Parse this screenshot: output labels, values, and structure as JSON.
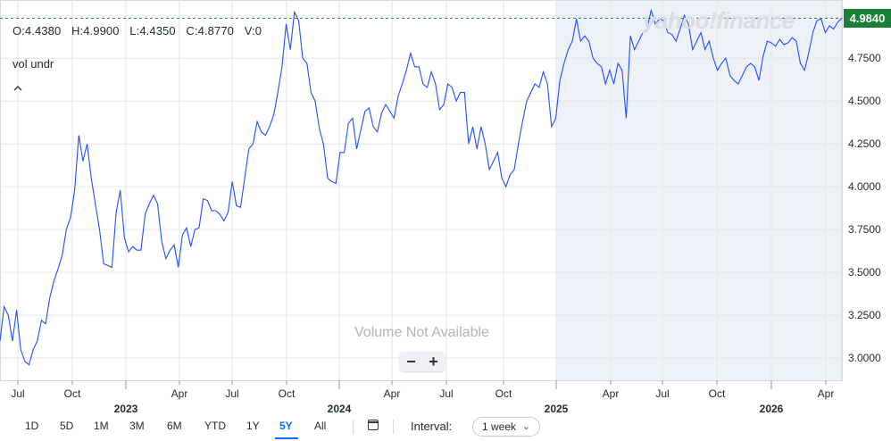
{
  "ohlc": {
    "open": "O:4.4380",
    "high": "H:4.9900",
    "low": "L:4.4350",
    "close": "C:4.8770",
    "volume": "V:0"
  },
  "volume_label": "vol undr",
  "watermark": "yahoo!finance",
  "volume_message": "Volume Not Available",
  "zoom": {
    "minus": "−",
    "plus": "+"
  },
  "current_price": "4.9840",
  "colors": {
    "line": "#1f4fff",
    "price_tag": "#1a7f37",
    "highlight": "#eef1f7",
    "grid": "#e4e6ea"
  },
  "icons": {
    "collapse": "chevron-up-icon",
    "calendar": "calendar-icon",
    "dropdown": "chevron-down-icon"
  },
  "toolbar": {
    "ranges": [
      "1D",
      "5D",
      "1M",
      "3M",
      "6M",
      "YTD",
      "1Y",
      "5Y",
      "All"
    ],
    "active_range": "5Y",
    "interval_label": "Interval:",
    "interval_value": "1 week"
  },
  "chart_data": {
    "type": "line",
    "y_ticks": [
      "5.0000",
      "4.7500",
      "4.5000",
      "4.2500",
      "4.0000",
      "3.7500",
      "3.5000",
      "3.2500",
      "3.0000"
    ],
    "ylim": [
      2.87,
      5.09
    ],
    "x_month_labels": [
      "Jul",
      "Oct",
      "Apr",
      "Jul",
      "Oct",
      "Apr",
      "Jul",
      "Oct",
      "Apr",
      "Jul",
      "Oct",
      "Apr"
    ],
    "x_year_labels": [
      "2023",
      "2024",
      "2025",
      "2026"
    ],
    "grid": true,
    "highlighted_range": [
      "2025",
      "2026"
    ],
    "series": [
      {
        "values": [
          3.1,
          3.3,
          3.25,
          3.1,
          3.28,
          3.05,
          2.98,
          2.96,
          3.05,
          3.1,
          3.22,
          3.2,
          3.35,
          3.45,
          3.52,
          3.6,
          3.75,
          3.82,
          3.98,
          4.3,
          4.15,
          4.25,
          4.05,
          3.9,
          3.75,
          3.55,
          3.54,
          3.53,
          3.85,
          3.98,
          3.7,
          3.62,
          3.65,
          3.63,
          3.63,
          3.84,
          3.9,
          3.95,
          3.9,
          3.68,
          3.58,
          3.63,
          3.66,
          3.53,
          3.72,
          3.76,
          3.65,
          3.75,
          3.76,
          3.93,
          3.92,
          3.86,
          3.86,
          3.84,
          3.8,
          3.85,
          4.03,
          3.89,
          3.88,
          4.05,
          4.22,
          4.25,
          4.38,
          4.32,
          4.3,
          4.35,
          4.42,
          4.55,
          4.7,
          4.95,
          4.8,
          5.02,
          4.97,
          4.75,
          4.72,
          4.55,
          4.5,
          4.34,
          4.25,
          4.05,
          4.03,
          4.02,
          4.2,
          4.2,
          4.37,
          4.4,
          4.22,
          4.33,
          4.44,
          4.46,
          4.35,
          4.32,
          4.43,
          4.48,
          4.44,
          4.4,
          4.53,
          4.6,
          4.68,
          4.78,
          4.7,
          4.7,
          4.6,
          4.58,
          4.67,
          4.6,
          4.45,
          4.48,
          4.6,
          4.58,
          4.5,
          4.55,
          4.55,
          4.25,
          4.35,
          4.22,
          4.35,
          4.25,
          4.1,
          4.15,
          4.2,
          4.05,
          4.0,
          4.07,
          4.1,
          4.25,
          4.38,
          4.5,
          4.55,
          4.6,
          4.58,
          4.67,
          4.6,
          4.35,
          4.4,
          4.62,
          4.72,
          4.8,
          4.85,
          4.98,
          4.85,
          4.88,
          4.85,
          4.75,
          4.72,
          4.7,
          4.6,
          4.68,
          4.6,
          4.72,
          4.68,
          4.4,
          4.88,
          4.8,
          4.85,
          4.9,
          4.92,
          5.03,
          4.95,
          4.98,
          4.97,
          4.9,
          4.89,
          4.85,
          4.92,
          5.0,
          4.95,
          4.8,
          4.85,
          4.9,
          4.8,
          4.85,
          4.75,
          4.68,
          4.72,
          4.75,
          4.65,
          4.62,
          4.6,
          4.65,
          4.7,
          4.72,
          4.7,
          4.62,
          4.76,
          4.85,
          4.84,
          4.82,
          4.86,
          4.83,
          4.84,
          4.87,
          4.85,
          4.72,
          4.68,
          4.78,
          4.9,
          4.97,
          4.98,
          4.9,
          4.94,
          4.92,
          4.96,
          4.984
        ]
      }
    ]
  }
}
